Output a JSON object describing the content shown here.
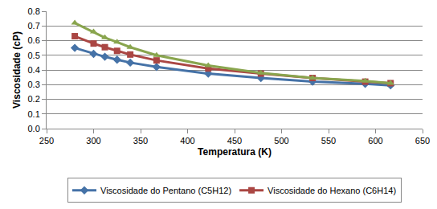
{
  "chart_data": {
    "type": "line",
    "x_label": "Temperatura (K)",
    "y_label": "Viscosidade (cP)",
    "x": [
      280,
      300,
      312,
      325,
      339,
      367,
      422,
      478,
      533,
      589,
      616
    ],
    "series": [
      {
        "name": "Viscosidade do Pentano (C5H12)",
        "color": "#4572A7",
        "marker": "diamond",
        "values": [
          0.55,
          0.51,
          0.49,
          0.47,
          0.45,
          0.42,
          0.375,
          0.345,
          0.32,
          0.305,
          0.295
        ]
      },
      {
        "name": "Viscosidade do Hexano (C6H14)",
        "color": "#AA4643",
        "marker": "square",
        "values": [
          0.63,
          0.58,
          0.555,
          0.53,
          0.505,
          0.465,
          0.41,
          0.375,
          0.345,
          0.32,
          0.31
        ]
      },
      {
        "color": "#89A54E",
        "marker": "triangle",
        "values": [
          0.72,
          0.66,
          0.62,
          0.59,
          0.555,
          0.5,
          0.43,
          0.38,
          0.345,
          0.325,
          0.31
        ]
      }
    ],
    "xlim": [
      250,
      650
    ],
    "xticks": [
      250,
      300,
      350,
      400,
      450,
      500,
      550,
      600,
      650
    ],
    "ylim": [
      0,
      0.8
    ],
    "yticks": [
      {
        "value": 0,
        "label": "0.0"
      },
      0.1,
      0.2,
      0.3,
      0.4,
      0.5,
      0.6,
      0.7,
      0.8
    ],
    "grid": true,
    "legend": "bottom"
  }
}
